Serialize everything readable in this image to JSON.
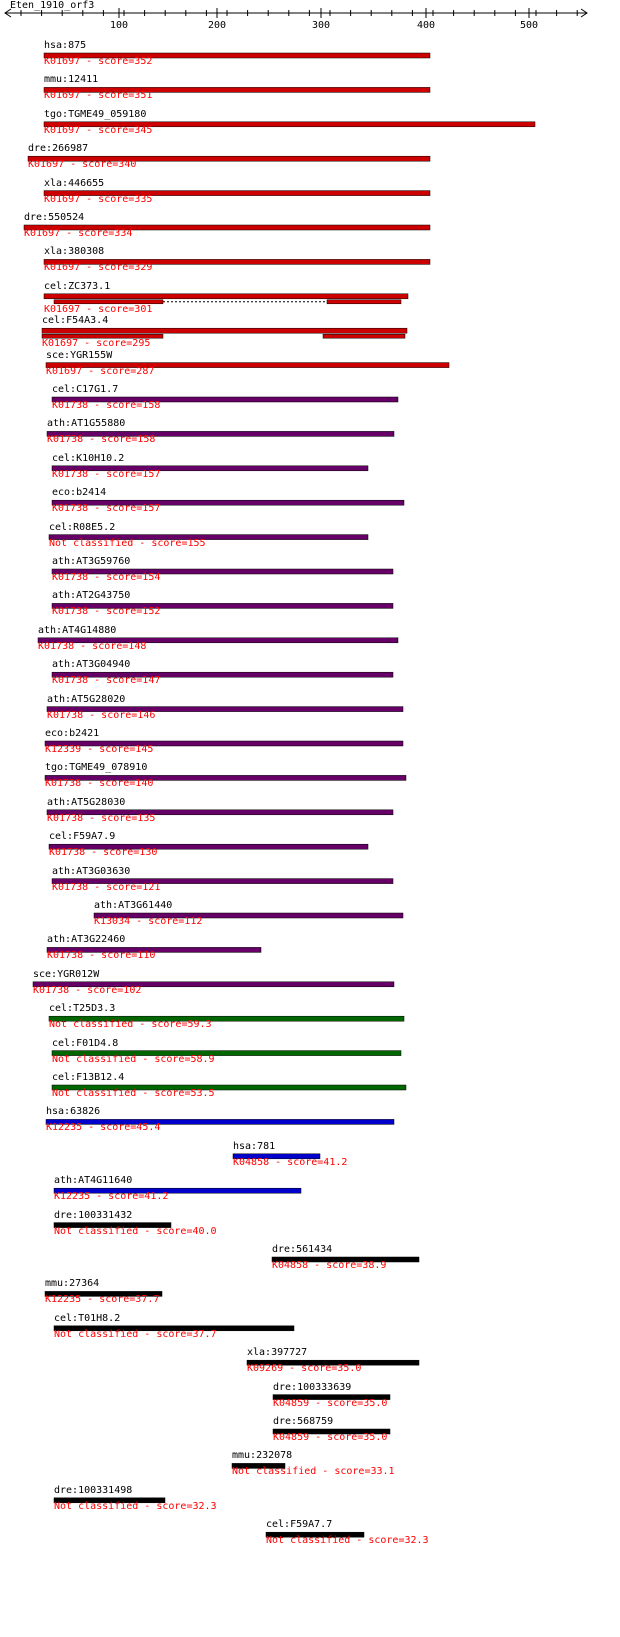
{
  "query": {
    "title": "Eten_1910_orf3"
  },
  "colors": {
    "K01697": "#cc0000",
    "K01738": "#660066",
    "K12339": "#660066",
    "K13034": "#660066",
    "green": "#006600",
    "blue": "#0000cc",
    "black": "#000000",
    "label_red": "#ff0000"
  },
  "axis": {
    "ticks": [
      "100",
      "200",
      "300",
      "400",
      "500"
    ]
  },
  "hits": [
    {
      "name": "hsa:875",
      "label": "K01697 - score=352",
      "color": "#cc0000",
      "segs": [
        [
          1,
          387
        ]
      ]
    },
    {
      "name": "mmu:12411",
      "label": "K01697 - score=351",
      "color": "#cc0000",
      "segs": [
        [
          1,
          387
        ]
      ]
    },
    {
      "name": "tgo:TGME49_059180",
      "label": "K01697 - score=345",
      "color": "#cc0000",
      "segs": [
        [
          1,
          492
        ]
      ]
    },
    {
      "name": "dre:266987",
      "label": "K01697 - score=340",
      "color": "#cc0000",
      "segs": [
        [
          -15,
          387
        ]
      ]
    },
    {
      "name": "xla:446655",
      "label": "K01697 - score=335",
      "color": "#cc0000",
      "segs": [
        [
          1,
          387
        ]
      ]
    },
    {
      "name": "dre:550524",
      "label": "K01697 - score=334",
      "color": "#cc0000",
      "segs": [
        [
          -19,
          387
        ]
      ]
    },
    {
      "name": "xla:380308",
      "label": "K01697 - score=329",
      "color": "#cc0000",
      "segs": [
        [
          1,
          387
        ]
      ]
    },
    {
      "name": "cel:ZC373.1",
      "label": "K01697 - score=301",
      "color": "#cc0000",
      "segs": [
        [
          1,
          365
        ],
        [
          11,
          120
        ],
        [
          284,
          358
        ]
      ],
      "dashed": [
        120,
        284
      ]
    },
    {
      "name": "cel:F54A3.4",
      "label": "K01697 - score=295",
      "color": "#cc0000",
      "segs": [
        [
          -1,
          364
        ],
        [
          -1,
          120
        ],
        [
          280,
          362
        ]
      ]
    },
    {
      "name": "sce:YGR155W",
      "label": "K01697 - score=287",
      "color": "#cc0000",
      "segs": [
        [
          3,
          406
        ]
      ]
    },
    {
      "name": "cel:C17G1.7",
      "label": "K01738 - score=158",
      "color": "#660066",
      "segs": [
        [
          9,
          355
        ]
      ]
    },
    {
      "name": "ath:AT1G55880",
      "label": "K01738 - score=158",
      "color": "#660066",
      "segs": [
        [
          4,
          351
        ]
      ]
    },
    {
      "name": "cel:K10H10.2",
      "label": "K01738 - score=157",
      "color": "#660066",
      "segs": [
        [
          9,
          325
        ]
      ]
    },
    {
      "name": "eco:b2414",
      "label": "K01738 - score=157",
      "color": "#660066",
      "segs": [
        [
          9,
          361
        ]
      ]
    },
    {
      "name": "cel:R08E5.2",
      "label": "Not classified - score=155",
      "color": "#660066",
      "segs": [
        [
          6,
          325
        ]
      ]
    },
    {
      "name": "ath:AT3G59760",
      "label": "K01738 - score=154",
      "color": "#660066",
      "segs": [
        [
          9,
          350
        ]
      ]
    },
    {
      "name": "ath:AT2G43750",
      "label": "K01738 - score=152",
      "color": "#660066",
      "segs": [
        [
          9,
          350
        ]
      ]
    },
    {
      "name": "ath:AT4G14880",
      "label": "K01738 - score=148",
      "color": "#660066",
      "segs": [
        [
          -5,
          355
        ]
      ]
    },
    {
      "name": "ath:AT3G04940",
      "label": "K01738 - score=147",
      "color": "#660066",
      "segs": [
        [
          9,
          350
        ]
      ]
    },
    {
      "name": "ath:AT5G28020",
      "label": "K01738 - score=146",
      "color": "#660066",
      "segs": [
        [
          4,
          360
        ]
      ]
    },
    {
      "name": "eco:b2421",
      "label": "K12339 - score=145",
      "color": "#660066",
      "segs": [
        [
          2,
          360
        ]
      ]
    },
    {
      "name": "tgo:TGME49_078910",
      "label": "K01738 - score=140",
      "color": "#660066",
      "segs": [
        [
          2,
          363
        ]
      ]
    },
    {
      "name": "ath:AT5G28030",
      "label": "K01738 - score=135",
      "color": "#660066",
      "segs": [
        [
          4,
          350
        ]
      ]
    },
    {
      "name": "cel:F59A7.9",
      "label": "K01738 - score=130",
      "color": "#660066",
      "segs": [
        [
          6,
          325
        ]
      ]
    },
    {
      "name": "ath:AT3G03630",
      "label": "K01738 - score=121",
      "color": "#660066",
      "segs": [
        [
          9,
          350
        ]
      ]
    },
    {
      "name": "ath:AT3G61440",
      "label": "K13034 - score=112",
      "color": "#660066",
      "segs": [
        [
          51,
          360
        ]
      ]
    },
    {
      "name": "ath:AT3G22460",
      "label": "K01738 - score=110",
      "color": "#660066",
      "segs": [
        [
          4,
          218
        ]
      ]
    },
    {
      "name": "sce:YGR012W",
      "label": "K01738 - score=102",
      "color": "#660066",
      "segs": [
        [
          -10,
          351
        ]
      ]
    },
    {
      "name": "cel:T25D3.3",
      "label": "Not classified - score=59.3",
      "color": "#006600",
      "segs": [
        [
          6,
          361
        ]
      ]
    },
    {
      "name": "cel:F01D4.8",
      "label": "Not classified - score=58.9",
      "color": "#006600",
      "segs": [
        [
          9,
          358
        ]
      ]
    },
    {
      "name": "cel:F13B12.4",
      "label": "Not classified - score=53.5",
      "color": "#006600",
      "segs": [
        [
          9,
          363
        ]
      ]
    },
    {
      "name": "hsa:63826",
      "label": "K12235 - score=45.4",
      "color": "#0000cc",
      "segs": [
        [
          3,
          351
        ]
      ]
    },
    {
      "name": "hsa:781",
      "label": "K04858 - score=41.2",
      "color": "#0000cc",
      "segs": [
        [
          190,
          277
        ]
      ]
    },
    {
      "name": "ath:AT4G11640",
      "label": "K12235 - score=41.2",
      "color": "#0000cc",
      "segs": [
        [
          11,
          258
        ]
      ]
    },
    {
      "name": "dre:100331432",
      "label": "Not classified - score=40.0",
      "color": "#000000",
      "segs": [
        [
          11,
          128
        ]
      ]
    },
    {
      "name": "dre:561434",
      "label": "K04858 - score=38.9",
      "color": "#000000",
      "segs": [
        [
          229,
          376
        ]
      ]
    },
    {
      "name": "mmu:27364",
      "label": "K12235 - score=37.7",
      "color": "#000000",
      "segs": [
        [
          2,
          119
        ]
      ]
    },
    {
      "name": "cel:T01H8.2",
      "label": "Not classified - score=37.7",
      "color": "#000000",
      "segs": [
        [
          11,
          251
        ]
      ]
    },
    {
      "name": "xla:397727",
      "label": "K09269 - score=35.0",
      "color": "#000000",
      "segs": [
        [
          204,
          376
        ]
      ]
    },
    {
      "name": "dre:100333639",
      "label": "K04859 - score=35.0",
      "color": "#000000",
      "segs": [
        [
          230,
          347
        ]
      ]
    },
    {
      "name": "dre:568759",
      "label": "K04859 - score=35.0",
      "color": "#000000",
      "segs": [
        [
          230,
          347
        ]
      ]
    },
    {
      "name": "mmu:232078",
      "label": "Not classified - score=33.1",
      "color": "#000000",
      "segs": [
        [
          189,
          242
        ]
      ]
    },
    {
      "name": "dre:100331498",
      "label": "Not classified - score=32.3",
      "color": "#000000",
      "segs": [
        [
          11,
          122
        ]
      ]
    },
    {
      "name": "cel:F59A7.7",
      "label": "Not classified - score=32.3",
      "color": "#000000",
      "segs": [
        [
          223,
          321
        ]
      ]
    }
  ]
}
